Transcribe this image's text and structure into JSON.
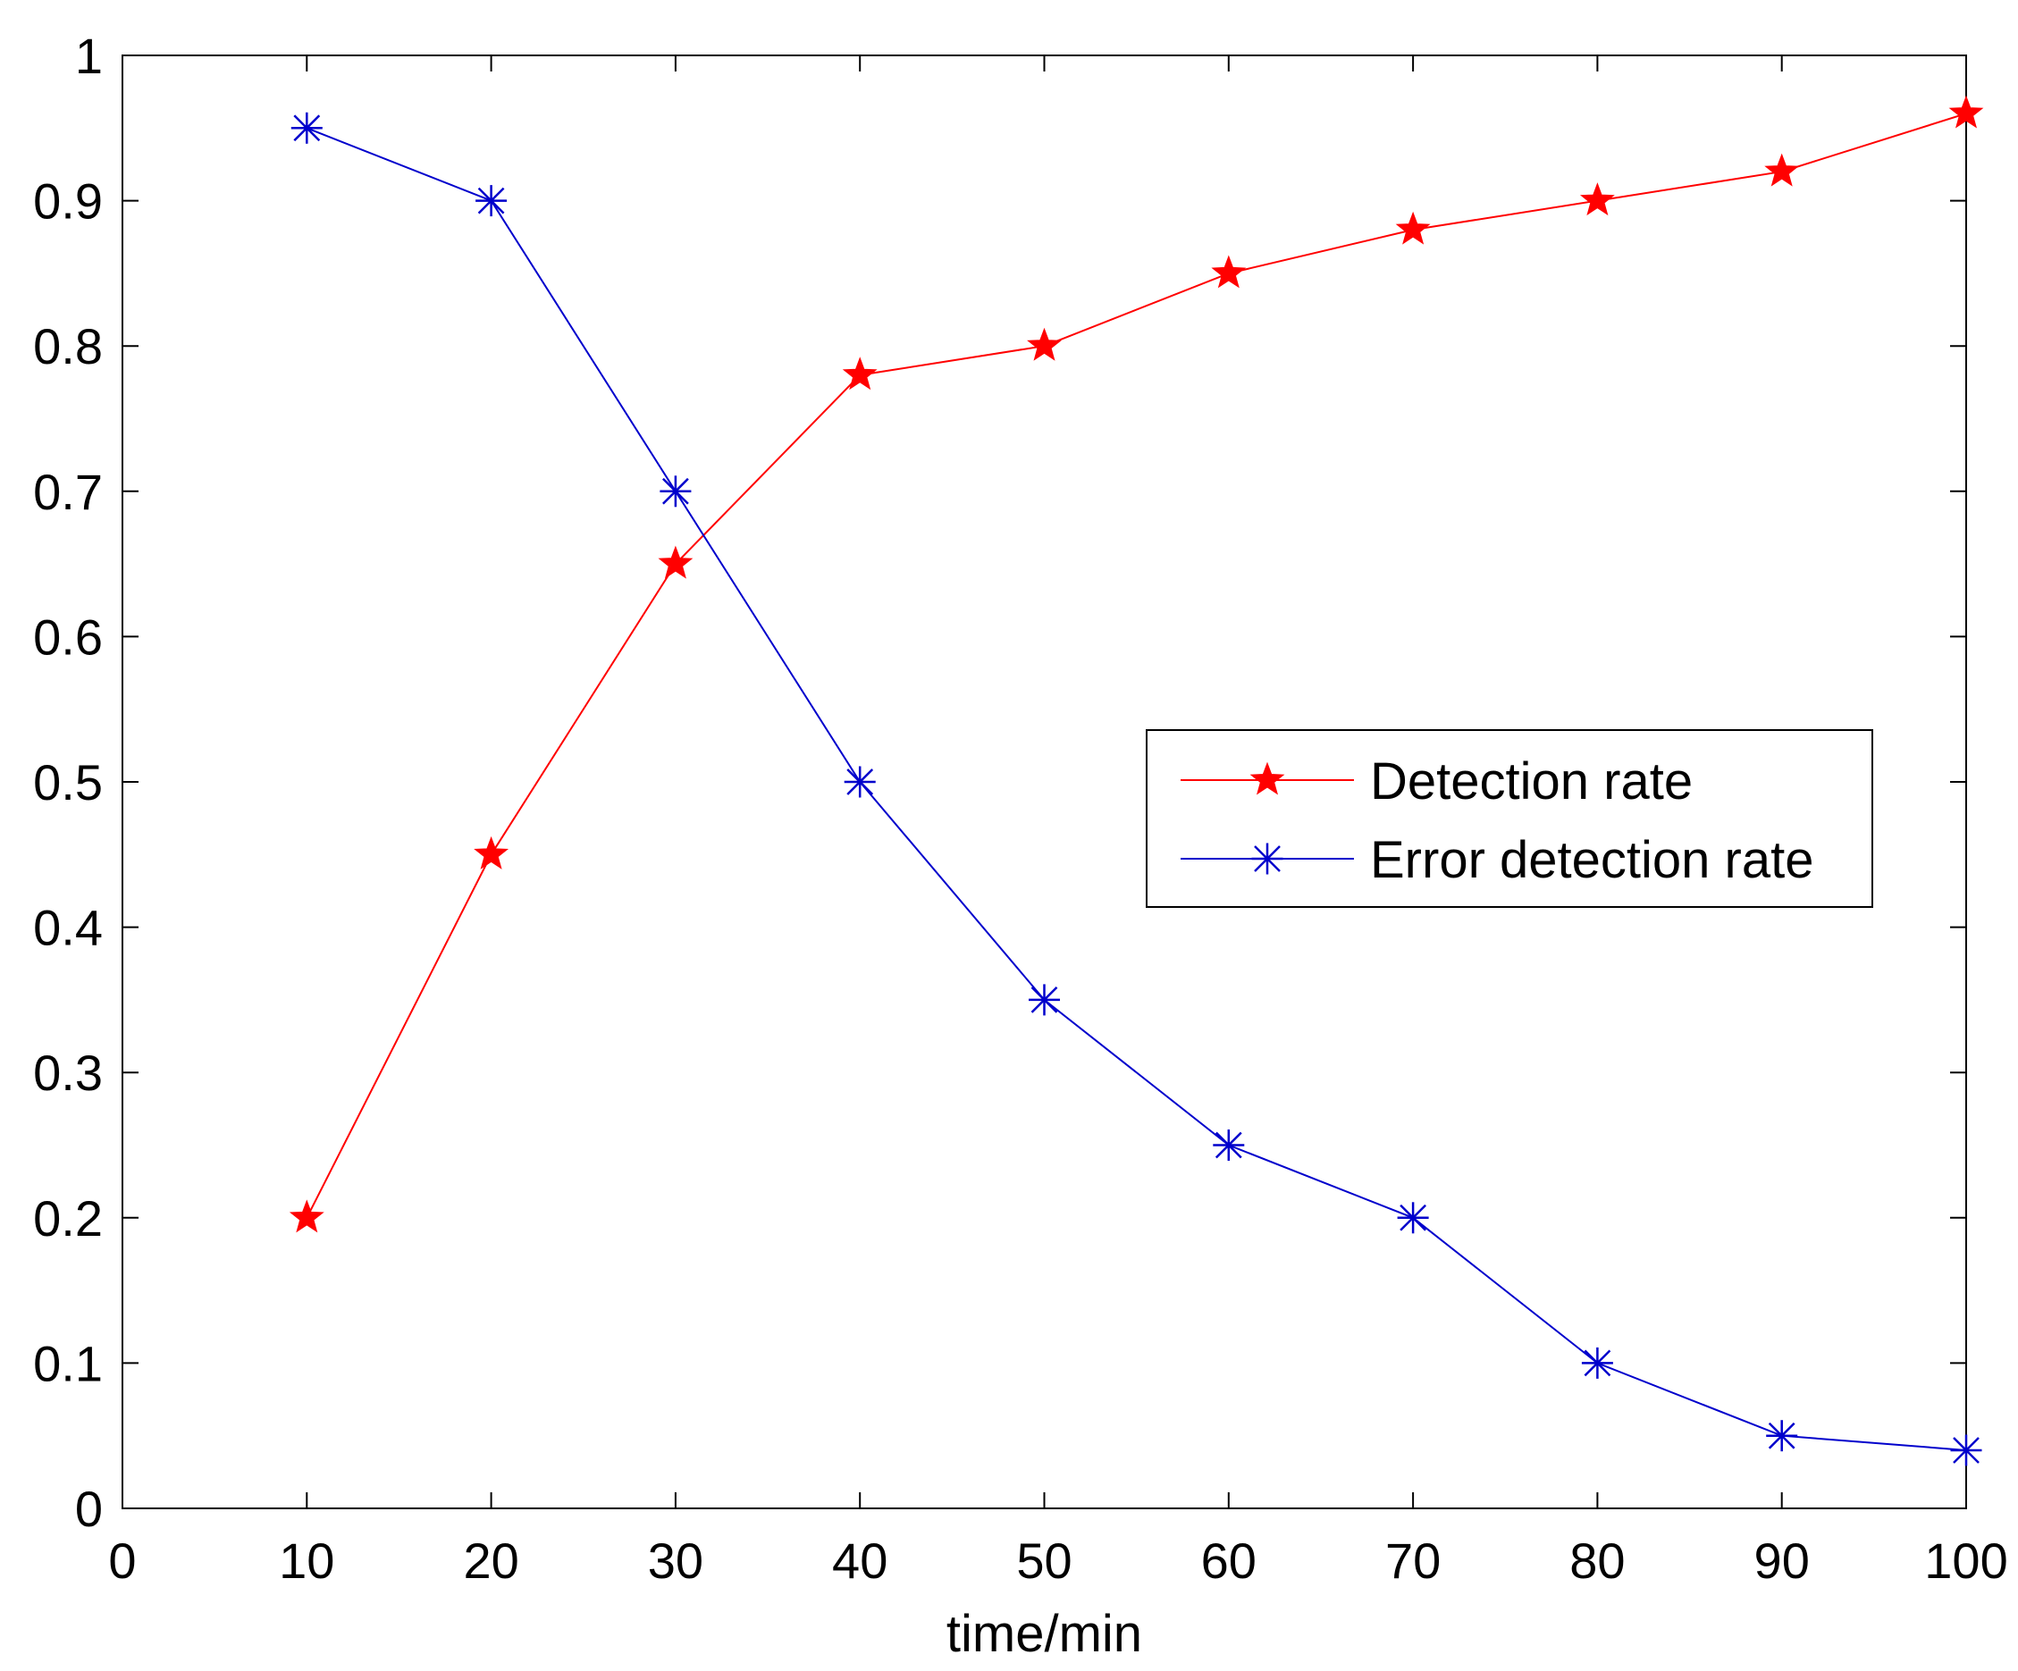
{
  "chart_data": {
    "type": "line",
    "title": "",
    "xlabel": "time/min",
    "ylabel": "",
    "xlim": [
      0,
      100
    ],
    "ylim": [
      0,
      1
    ],
    "xticks": [
      0,
      10,
      20,
      30,
      40,
      50,
      60,
      70,
      80,
      90,
      100
    ],
    "yticks": [
      0,
      0.1,
      0.2,
      0.3,
      0.4,
      0.5,
      0.6,
      0.7,
      0.8,
      0.9,
      1
    ],
    "xtick_labels": [
      "0",
      "10",
      "20",
      "30",
      "40",
      "50",
      "60",
      "70",
      "80",
      "90",
      "100"
    ],
    "ytick_labels": [
      "0",
      "0.1",
      "0.2",
      "0.3",
      "0.4",
      "0.5",
      "0.6",
      "0.7",
      "0.8",
      "0.9",
      "1"
    ],
    "grid": false,
    "legend_position": "center-right",
    "x": [
      10,
      20,
      30,
      40,
      50,
      60,
      70,
      80,
      90,
      100
    ],
    "series": [
      {
        "name": "Detection rate",
        "color": "#ff0000",
        "marker": "star-filled",
        "values": [
          0.2,
          0.45,
          0.65,
          0.78,
          0.8,
          0.85,
          0.88,
          0.9,
          0.92,
          0.96
        ]
      },
      {
        "name": "Error detection rate",
        "color": "#0000cc",
        "marker": "asterisk",
        "values": [
          0.95,
          0.9,
          0.7,
          0.5,
          0.35,
          0.25,
          0.2,
          0.1,
          0.05,
          0.04
        ]
      }
    ]
  }
}
